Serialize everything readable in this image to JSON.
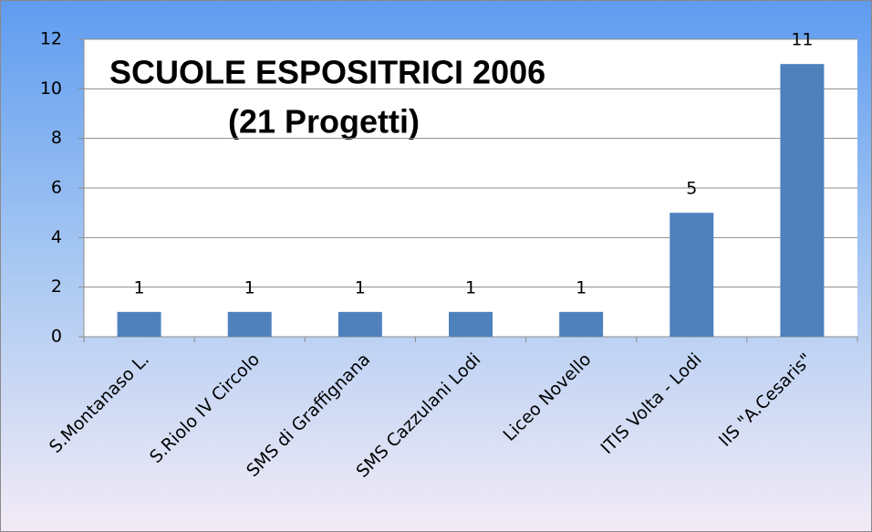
{
  "chart_data": {
    "type": "bar",
    "title": "SCUOLE ESPOSITRICI 2006",
    "subtitle": "(21 Progetti)",
    "categories": [
      "S.Montanaso L.",
      "S.Riolo IV Circolo",
      "SMS di Graffignana",
      "SMS Cazzulani Lodi",
      "Liceo Novello",
      "ITIS Volta - Lodi",
      "IIS \"A.Cesaris\""
    ],
    "values": [
      1,
      1,
      1,
      1,
      1,
      5,
      11
    ],
    "color": "#4f81bd",
    "ylim": [
      0,
      12
    ],
    "yticks": [
      0,
      2,
      4,
      6,
      8,
      10,
      12
    ],
    "grid": true
  }
}
